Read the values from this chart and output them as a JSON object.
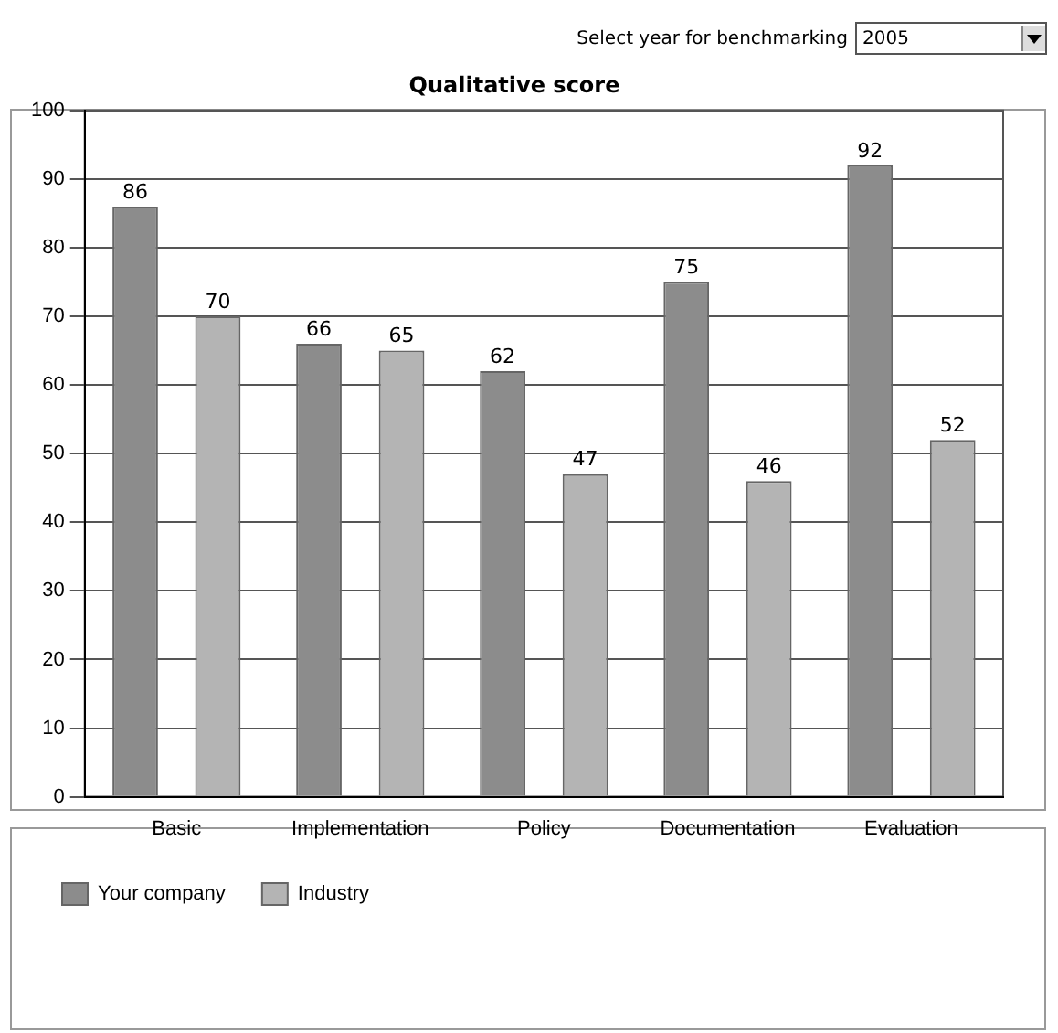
{
  "chart_data": {
    "type": "bar",
    "title": "Qualitative score",
    "categories": [
      "Basic",
      "Implementation",
      "Policy",
      "Documentation",
      "Evaluation"
    ],
    "series": [
      {
        "name": "Your company",
        "color": "#8c8c8c",
        "values": [
          86,
          66,
          62,
          75,
          92
        ]
      },
      {
        "name": "Industry",
        "color": "#b4b4b4",
        "values": [
          70,
          65,
          47,
          46,
          52
        ]
      }
    ],
    "ylim": [
      0,
      100
    ],
    "yticks": [
      0,
      10,
      20,
      30,
      40,
      50,
      60,
      70,
      80,
      90,
      100
    ],
    "grid": "y",
    "legend": "bottom",
    "data_labels": true,
    "annotations": [
      "Select year for benchmarking",
      "2005"
    ]
  }
}
